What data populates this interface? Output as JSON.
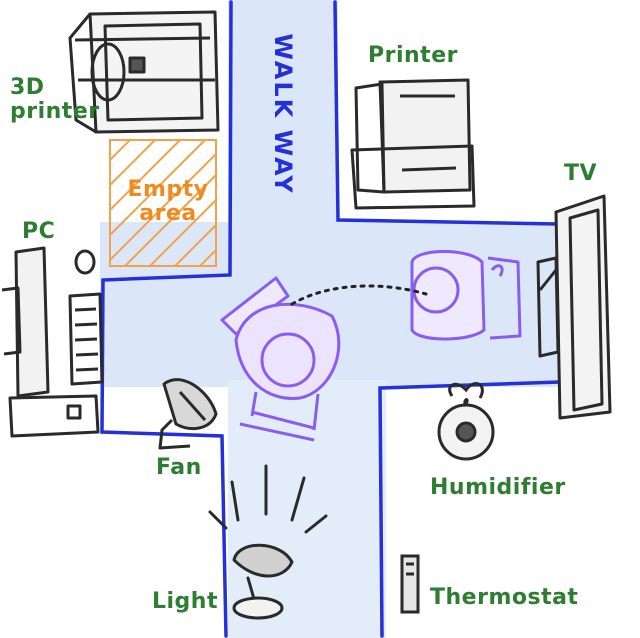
{
  "walkway": "WALK WAY",
  "labels": {
    "printer_3d": "3D\nprinter",
    "printer": "Printer",
    "empty_area": "Empty\narea",
    "tv": "TV",
    "pc": "PC",
    "fan": "Fan",
    "humidifier": "Humidifier",
    "light": "Light",
    "thermostat": "Thermostat"
  },
  "colors": {
    "walkway_fill": "#dbe7f8",
    "walkway_edge": "#2430d8",
    "label_green": "#2e7d32",
    "empty_area_orange": "#ef8a1f",
    "person": "#8a5cf0",
    "sketch": "#2a2a2a"
  }
}
